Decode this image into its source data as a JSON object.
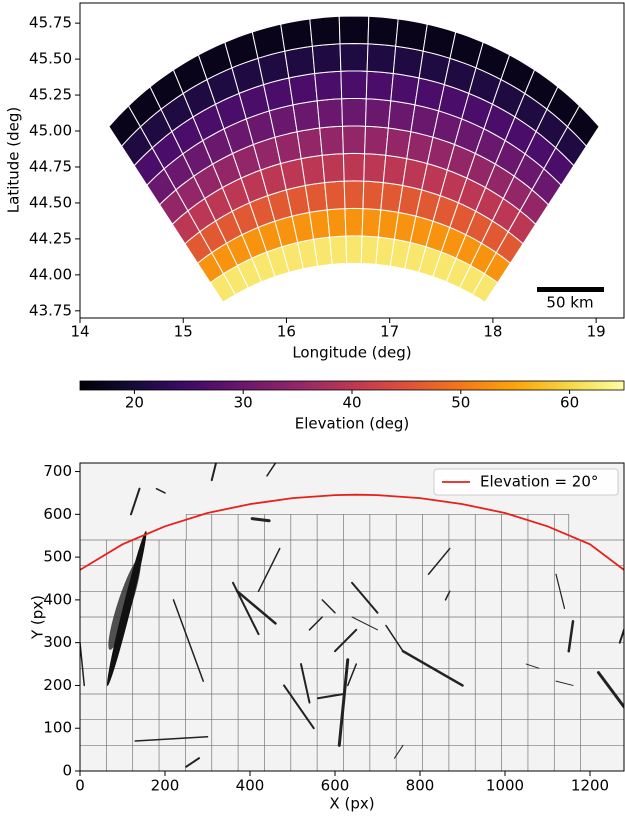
{
  "chart_data": [
    {
      "type": "map",
      "xlabel": "Longitude (deg)",
      "ylabel": "Latitude (deg)",
      "xlim": [
        14,
        19.27
      ],
      "ylim": [
        43.7,
        45.89
      ],
      "xticks": [
        14,
        15,
        16,
        17,
        18,
        19
      ],
      "yticks": [
        43.75,
        {
          "value": 44,
          "label": "44.00"
        },
        44.25,
        {
          "value": 44.5,
          "label": "44.50"
        },
        44.75,
        {
          "value": 45,
          "label": "45.00"
        },
        45.25,
        {
          "value": 45.5,
          "label": "45.50"
        },
        45.75
      ],
      "ring_values": [
        62,
        53,
        46,
        40,
        35,
        30,
        26,
        21,
        17
      ],
      "colormap": "inferno",
      "annotation": "50 km",
      "colorbar": {
        "label": "Elevation (deg)",
        "lim": [
          15,
          65
        ],
        "ticks": [
          20,
          30,
          40,
          50,
          60
        ]
      }
    },
    {
      "type": "line",
      "xlabel": "X (px)",
      "ylabel": "Y (px)",
      "xlim": [
        0,
        1280
      ],
      "ylim": [
        0,
        720
      ],
      "xticks": [
        0,
        200,
        400,
        600,
        800,
        1000,
        1200
      ],
      "yticks": [
        0,
        100,
        200,
        300,
        400,
        500,
        600,
        700
      ],
      "legend": "upper right",
      "x": [
        0,
        100,
        200,
        300,
        400,
        500,
        600,
        650,
        700,
        800,
        900,
        1000,
        1100,
        1200,
        1280
      ],
      "series": [
        {
          "name": "Elevation = 20°",
          "color": "#e8201c",
          "values": [
            470,
            530,
            572,
            603,
            624,
            638,
            645,
            646,
            645,
            638,
            624,
            603,
            572,
            530,
            470
          ]
        }
      ]
    }
  ]
}
